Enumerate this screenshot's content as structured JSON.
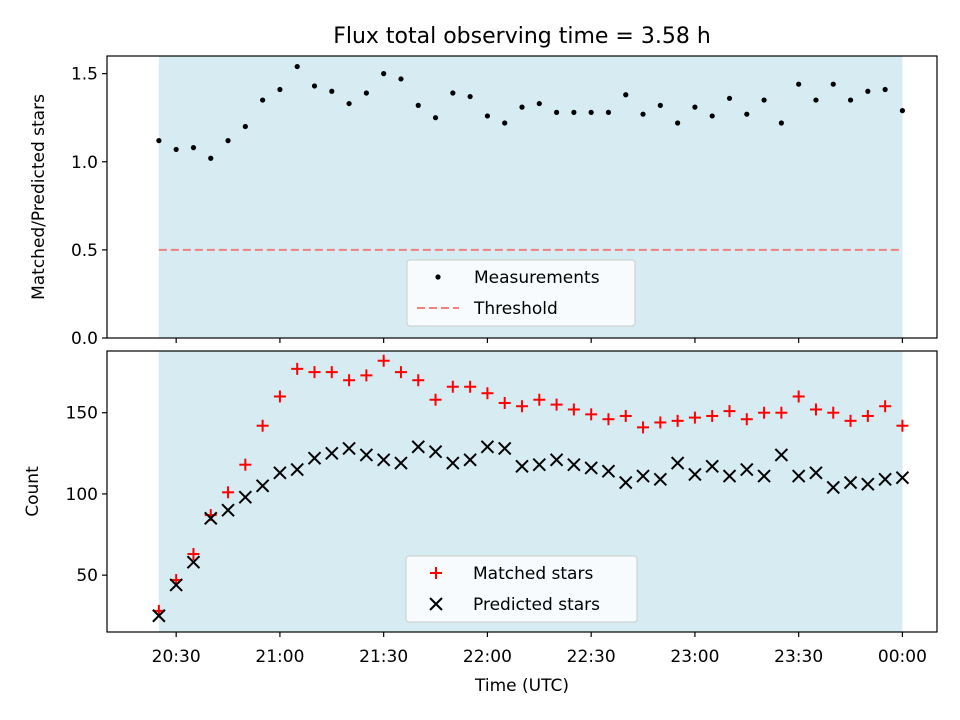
{
  "title": "Flux total observing time = 3.58 h",
  "xlabel": "Time (UTC)",
  "x_tick_labels": [
    "20:30",
    "21:00",
    "21:30",
    "22:00",
    "22:30",
    "23:00",
    "23:30",
    "00:00"
  ],
  "colors": {
    "span_fill": "#add8e6",
    "measurements": "#000000",
    "threshold": "#f08080",
    "matched": "#ff0000",
    "predicted": "#000000"
  },
  "chart_data": [
    {
      "type": "scatter",
      "panel": "top",
      "ylabel": "Matched/Predicted stars",
      "ylim": [
        0,
        1.6
      ],
      "y_ticks": [
        "0.0",
        "0.5",
        "1.0",
        "1.5"
      ],
      "xlim": [
        "20:10",
        "00:10"
      ],
      "shaded_span": [
        "20:25",
        "00:00"
      ],
      "threshold": 0.5,
      "legend": {
        "location": "lower center",
        "entries": [
          "Measurements",
          "Threshold"
        ]
      },
      "series": [
        {
          "name": "Measurements",
          "marker": "dot",
          "x": [
            "20:25",
            "20:30",
            "20:35",
            "20:40",
            "20:45",
            "20:50",
            "20:55",
            "21:00",
            "21:05",
            "21:10",
            "21:15",
            "21:20",
            "21:25",
            "21:30",
            "21:35",
            "21:40",
            "21:45",
            "21:50",
            "21:55",
            "22:00",
            "22:05",
            "22:10",
            "22:15",
            "22:20",
            "22:25",
            "22:30",
            "22:35",
            "22:40",
            "22:45",
            "22:50",
            "22:55",
            "23:00",
            "23:05",
            "23:10",
            "23:15",
            "23:20",
            "23:25",
            "23:30",
            "23:35",
            "23:40",
            "23:45",
            "23:50",
            "23:55",
            "00:00"
          ],
          "y": [
            1.12,
            1.07,
            1.08,
            1.02,
            1.12,
            1.2,
            1.35,
            1.41,
            1.54,
            1.43,
            1.4,
            1.33,
            1.39,
            1.5,
            1.47,
            1.32,
            1.25,
            1.39,
            1.37,
            1.26,
            1.22,
            1.31,
            1.33,
            1.28,
            1.28,
            1.28,
            1.28,
            1.38,
            1.27,
            1.32,
            1.22,
            1.31,
            1.26,
            1.36,
            1.27,
            1.35,
            1.22,
            1.44,
            1.35,
            1.44,
            1.35,
            1.4,
            1.41,
            1.29
          ]
        }
      ]
    },
    {
      "type": "scatter",
      "panel": "bottom",
      "ylabel": "Count",
      "ylim": [
        15,
        188
      ],
      "y_ticks": [
        "50",
        "100",
        "150"
      ],
      "xlim": [
        "20:10",
        "00:10"
      ],
      "shaded_span": [
        "20:25",
        "00:00"
      ],
      "legend": {
        "location": "lower center",
        "entries": [
          "Matched stars",
          "Predicted stars"
        ]
      },
      "x": [
        "20:25",
        "20:30",
        "20:35",
        "20:40",
        "20:45",
        "20:50",
        "20:55",
        "21:00",
        "21:05",
        "21:10",
        "21:15",
        "21:20",
        "21:25",
        "21:30",
        "21:35",
        "21:40",
        "21:45",
        "21:50",
        "21:55",
        "22:00",
        "22:05",
        "22:10",
        "22:15",
        "22:20",
        "22:25",
        "22:30",
        "22:35",
        "22:40",
        "22:45",
        "22:50",
        "22:55",
        "23:00",
        "23:05",
        "23:10",
        "23:15",
        "23:20",
        "23:25",
        "23:30",
        "23:35",
        "23:40",
        "23:45",
        "23:50",
        "23:55",
        "00:00"
      ],
      "series": [
        {
          "name": "Matched stars",
          "marker": "plus",
          "values": [
            28,
            47,
            63,
            87,
            101,
            118,
            142,
            160,
            177,
            175,
            175,
            170,
            173,
            182,
            175,
            170,
            158,
            166,
            166,
            162,
            156,
            154,
            158,
            155,
            152,
            149,
            146,
            148,
            141,
            144,
            145,
            147,
            148,
            151,
            146,
            150,
            150,
            160,
            152,
            150,
            145,
            148,
            154,
            142
          ]
        },
        {
          "name": "Predicted stars",
          "marker": "x",
          "values": [
            25,
            44,
            58,
            85,
            90,
            98,
            105,
            113,
            115,
            122,
            125,
            128,
            124,
            121,
            119,
            129,
            126,
            119,
            121,
            129,
            128,
            117,
            118,
            121,
            118,
            116,
            114,
            107,
            111,
            109,
            119,
            112,
            117,
            111,
            115,
            111,
            124,
            111,
            113,
            104,
            107,
            106,
            109,
            110
          ]
        }
      ]
    }
  ]
}
